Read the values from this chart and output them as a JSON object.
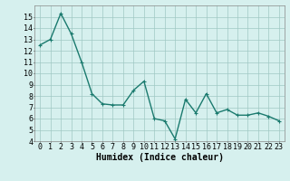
{
  "x": [
    0,
    1,
    2,
    3,
    4,
    5,
    6,
    7,
    8,
    9,
    10,
    11,
    12,
    13,
    14,
    15,
    16,
    17,
    18,
    19,
    20,
    21,
    22,
    23
  ],
  "y": [
    12.5,
    13.0,
    15.3,
    13.5,
    11.0,
    8.2,
    7.3,
    7.2,
    7.2,
    8.5,
    9.3,
    6.0,
    5.8,
    4.2,
    7.7,
    6.5,
    8.2,
    6.5,
    6.8,
    6.3,
    6.3,
    6.5,
    6.2,
    5.8
  ],
  "line_color": "#1a7a6e",
  "marker": "+",
  "marker_size": 3,
  "bg_color": "#d6f0ee",
  "grid_color": "#a0c8c4",
  "xlabel": "Humidex (Indice chaleur)",
  "xlim": [
    -0.5,
    23.5
  ],
  "ylim": [
    4,
    16
  ],
  "yticks": [
    4,
    5,
    6,
    7,
    8,
    9,
    10,
    11,
    12,
    13,
    14,
    15
  ],
  "xticks": [
    0,
    1,
    2,
    3,
    4,
    5,
    6,
    7,
    8,
    9,
    10,
    11,
    12,
    13,
    14,
    15,
    16,
    17,
    18,
    19,
    20,
    21,
    22,
    23
  ],
  "xlabel_fontsize": 7,
  "tick_fontsize": 6,
  "line_width": 1.0
}
